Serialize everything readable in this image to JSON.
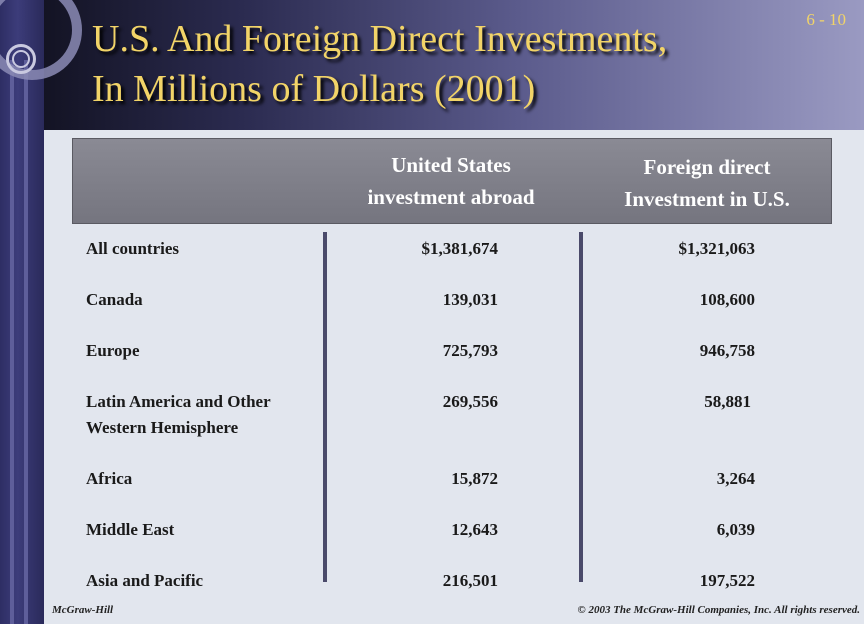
{
  "slide_number": "6 - 10",
  "title": {
    "line1": "U.S. And Foreign Direct Investments,",
    "line2": "In Millions of Dollars (2001)"
  },
  "table": {
    "columns": [
      {
        "line1": "United States",
        "line2": "investment abroad"
      },
      {
        "line1": "Foreign direct",
        "line2": "Investment in U.S."
      }
    ],
    "rows": [
      {
        "label1": "All countries",
        "label2": "",
        "us_abroad": "$1,381,674",
        "foreign_in_us": "$1,321,063"
      },
      {
        "label1": "Canada",
        "label2": "",
        "us_abroad": "139,031",
        "foreign_in_us": "108,600"
      },
      {
        "label1": "Europe",
        "label2": "",
        "us_abroad": "725,793",
        "foreign_in_us": "946,758"
      },
      {
        "label1": "Latin America  and Other",
        "label2": "Western  Hemisphere",
        "us_abroad": "269,556",
        "foreign_in_us": "58,881"
      },
      {
        "label1": "Africa",
        "label2": "",
        "us_abroad": "15,872",
        "foreign_in_us": "3,264"
      },
      {
        "label1": "Middle East",
        "label2": "",
        "us_abroad": "12,643",
        "foreign_in_us": "6,039"
      },
      {
        "label1": "Asia and Pacific",
        "label2": "",
        "us_abroad": "216,501",
        "foreign_in_us": "197,522"
      }
    ]
  },
  "footer": {
    "publisher": "McGraw-Hill",
    "copyright": "© 2003 The McGraw-Hill Companies, Inc. All rights reserved."
  },
  "colors": {
    "title": "#f2d468",
    "header_bar": "#7f7f89",
    "background": "#e2e6ee"
  }
}
